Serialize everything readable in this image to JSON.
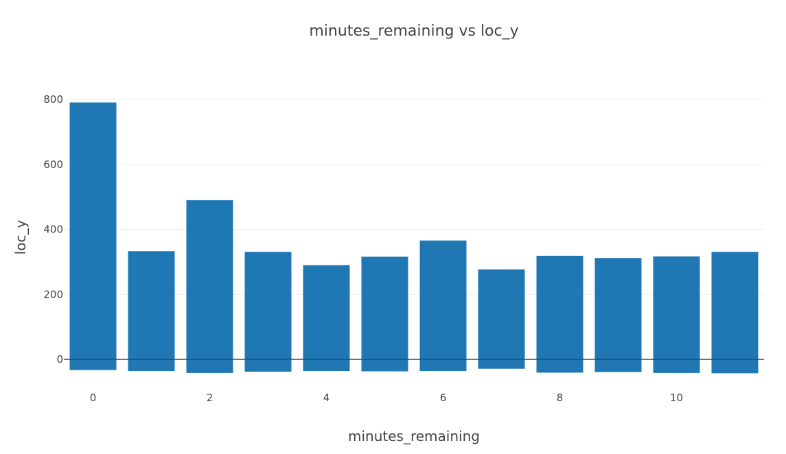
{
  "chart_data": {
    "type": "bar",
    "title": "minutes_remaining vs loc_y",
    "xlabel": "minutes_remaining",
    "ylabel": "loc_y",
    "x": [
      0,
      1,
      2,
      3,
      4,
      5,
      6,
      7,
      8,
      9,
      10,
      11
    ],
    "bars": [
      {
        "x": 0,
        "top": 791,
        "bottom": -33
      },
      {
        "x": 1,
        "top": 333,
        "bottom": -36
      },
      {
        "x": 2,
        "top": 490,
        "bottom": -42
      },
      {
        "x": 3,
        "top": 331,
        "bottom": -38
      },
      {
        "x": 4,
        "top": 290,
        "bottom": -36
      },
      {
        "x": 5,
        "top": 316,
        "bottom": -37
      },
      {
        "x": 6,
        "top": 366,
        "bottom": -36
      },
      {
        "x": 7,
        "top": 277,
        "bottom": -29
      },
      {
        "x": 8,
        "top": 319,
        "bottom": -41
      },
      {
        "x": 9,
        "top": 312,
        "bottom": -39
      },
      {
        "x": 10,
        "top": 317,
        "bottom": -42
      },
      {
        "x": 11,
        "top": 331,
        "bottom": -43
      }
    ],
    "xticks": [
      0,
      2,
      4,
      6,
      8,
      10
    ],
    "xtick_labels": [
      "0",
      "2",
      "4",
      "6",
      "8",
      "10"
    ],
    "yticks": [
      0,
      200,
      400,
      600,
      800
    ],
    "ytick_labels": [
      "0",
      "200",
      "400",
      "600",
      "800"
    ],
    "xlim": [
      -0.5,
      11.5
    ],
    "ylim": [
      -55,
      830
    ],
    "grid": true,
    "legend": "none",
    "bar_color": "#1f77b4"
  }
}
